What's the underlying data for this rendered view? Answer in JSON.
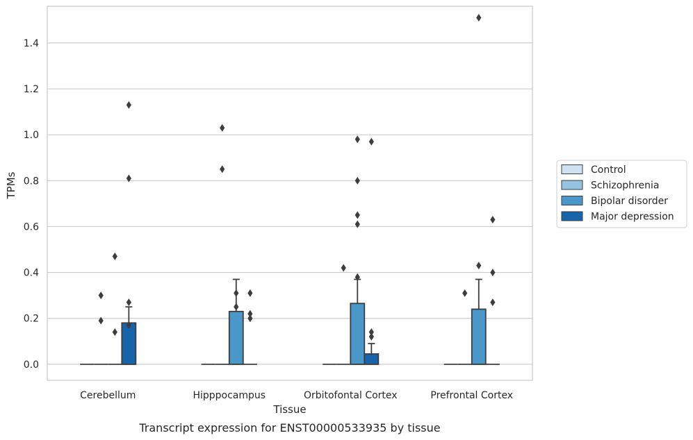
{
  "chart_data": {
    "type": "box",
    "caption": "Transcript expression for ENST00000533935 by tissue",
    "xlabel": "Tissue",
    "ylabel": "TPMs",
    "ylim": [
      -0.07,
      1.56
    ],
    "yticks": [
      "0.0",
      "0.2",
      "0.4",
      "0.6",
      "0.8",
      "1.0",
      "1.2",
      "1.4"
    ],
    "grid": "horizontal",
    "legend_position": "right",
    "categories": [
      "Cerebellum",
      "Hipppocampus",
      "Orbitofontal Cortex",
      "Prefrontal Cortex"
    ],
    "series": [
      {
        "name": "Control",
        "color": "#d0e1f2",
        "boxes": [
          {
            "q1": 0.0,
            "median": 0.0,
            "q3": 0.0,
            "whislo": 0.0,
            "whishi": 0.0,
            "fliers": []
          },
          {
            "q1": 0.0,
            "median": 0.0,
            "q3": 0.0,
            "whislo": 0.0,
            "whishi": 0.0,
            "fliers": []
          },
          {
            "q1": 0.0,
            "median": 0.0,
            "q3": 0.0,
            "whislo": 0.0,
            "whishi": 0.0,
            "fliers": []
          },
          {
            "q1": 0.0,
            "median": 0.0,
            "q3": 0.0,
            "whislo": 0.0,
            "whishi": 0.0,
            "fliers": []
          }
        ]
      },
      {
        "name": "Schizophrenia",
        "color": "#94c4df",
        "boxes": [
          {
            "q1": 0.0,
            "median": 0.0,
            "q3": 0.0,
            "whislo": 0.0,
            "whishi": 0.0,
            "fliers": [
              0.3,
              0.19
            ]
          },
          {
            "q1": 0.0,
            "median": 0.0,
            "q3": 0.0,
            "whislo": 0.0,
            "whishi": 0.0,
            "fliers": [
              1.03,
              0.85
            ]
          },
          {
            "q1": 0.0,
            "median": 0.0,
            "q3": 0.0,
            "whislo": 0.0,
            "whishi": 0.0,
            "fliers": [
              0.42
            ]
          },
          {
            "q1": 0.0,
            "median": 0.0,
            "q3": 0.0,
            "whislo": 0.0,
            "whishi": 0.0,
            "fliers": [
              0.31
            ]
          }
        ]
      },
      {
        "name": "Bipolar disorder",
        "color": "#4a98c9",
        "boxes": [
          {
            "q1": 0.0,
            "median": 0.0,
            "q3": 0.0,
            "whislo": 0.0,
            "whishi": 0.0,
            "fliers": [
              0.47,
              0.14
            ]
          },
          {
            "q1": 0.0,
            "median": 0.0,
            "q3": 0.23,
            "whislo": 0.0,
            "whishi": 0.37,
            "fliers": [
              0.31,
              0.25
            ]
          },
          {
            "q1": 0.0,
            "median": 0.0,
            "q3": 0.265,
            "whislo": 0.0,
            "whishi": 0.37,
            "fliers": [
              0.98,
              0.8,
              0.65,
              0.61,
              0.38
            ]
          },
          {
            "q1": 0.0,
            "median": 0.0,
            "q3": 0.24,
            "whislo": 0.0,
            "whishi": 0.37,
            "fliers": [
              1.51,
              0.43
            ]
          }
        ]
      },
      {
        "name": "Major depression",
        "color": "#1764ab",
        "boxes": [
          {
            "q1": 0.0,
            "median": 0.0,
            "q3": 0.18,
            "whislo": 0.0,
            "whishi": 0.25,
            "fliers": [
              1.13,
              0.81,
              0.27,
              0.17
            ]
          },
          {
            "q1": 0.0,
            "median": 0.0,
            "q3": 0.0,
            "whislo": 0.0,
            "whishi": 0.0,
            "fliers": [
              0.31,
              0.22,
              0.2
            ]
          },
          {
            "q1": 0.0,
            "median": 0.0,
            "q3": 0.045,
            "whislo": 0.0,
            "whishi": 0.09,
            "fliers": [
              0.97,
              0.14,
              0.12
            ]
          },
          {
            "q1": 0.0,
            "median": 0.0,
            "q3": 0.0,
            "whislo": 0.0,
            "whishi": 0.0,
            "fliers": [
              0.63,
              0.4,
              0.27
            ]
          }
        ]
      }
    ]
  }
}
